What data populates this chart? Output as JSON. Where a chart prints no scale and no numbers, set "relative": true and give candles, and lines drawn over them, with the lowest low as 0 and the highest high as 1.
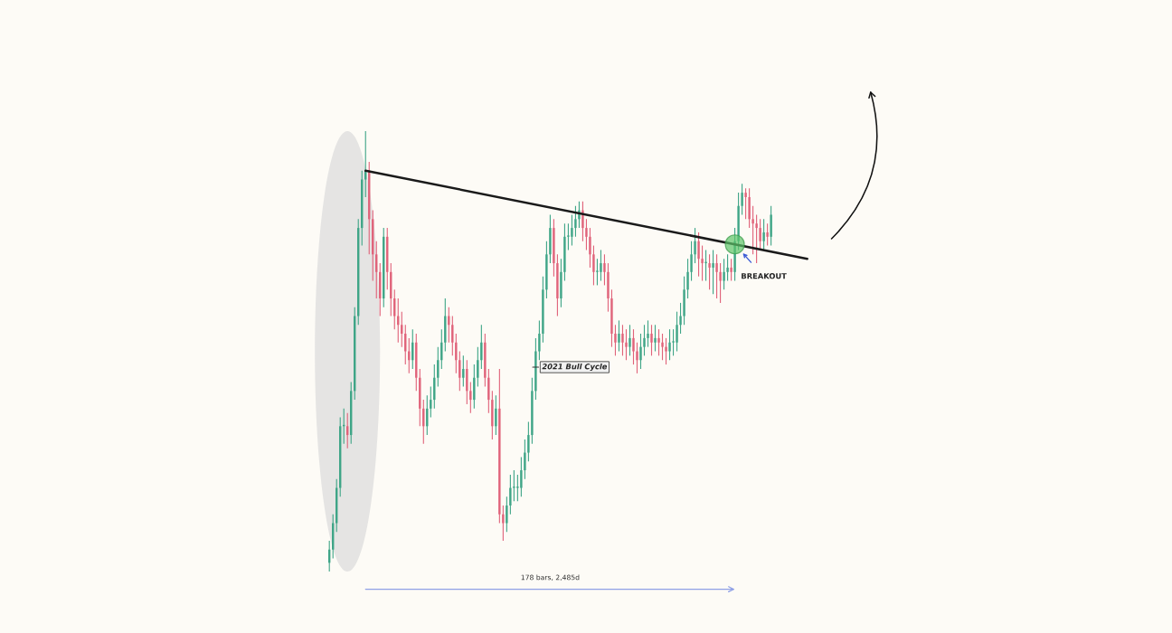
{
  "chart_data": {
    "type": "candlestick",
    "relative": true,
    "categories": [
      null,
      null,
      null,
      null,
      null,
      null,
      null,
      null,
      null,
      null,
      null,
      null,
      null,
      null,
      null,
      null,
      null,
      null,
      null,
      null,
      null,
      null,
      null,
      null,
      null,
      null,
      null,
      null,
      null,
      null,
      null,
      null,
      null,
      null,
      null,
      null,
      null,
      null,
      null,
      null,
      null,
      null,
      null,
      null,
      null,
      null,
      null,
      null,
      null,
      null,
      null,
      null,
      null,
      null,
      null,
      null,
      null,
      null,
      null,
      null,
      null,
      null,
      null,
      null,
      null,
      null,
      null,
      null,
      null,
      null,
      null,
      null,
      null,
      null,
      null,
      null,
      null,
      null,
      null,
      null,
      null,
      null,
      null,
      null,
      null,
      null,
      null,
      null,
      null,
      null,
      null,
      null,
      null,
      null,
      null,
      null,
      null,
      null,
      null,
      null,
      null,
      null,
      null,
      null,
      null,
      null,
      null,
      null,
      null,
      null,
      null,
      null,
      null,
      null,
      null,
      null,
      null,
      null,
      null,
      null,
      null,
      null,
      null,
      null,
      null,
      null,
      null,
      null,
      null,
      null,
      null,
      null,
      null
    ],
    "ohlc": [
      [
        0.02,
        0.07,
        0,
        0.05
      ],
      [
        0.05,
        0.13,
        0.03,
        0.11
      ],
      [
        0.11,
        0.21,
        0.09,
        0.19
      ],
      [
        0.19,
        0.35,
        0.17,
        0.33
      ],
      [
        0.33,
        0.37,
        0.29,
        0.33
      ],
      [
        0.33,
        0.36,
        0.28,
        0.31
      ],
      [
        0.31,
        0.43,
        0.29,
        0.41
      ],
      [
        0.41,
        0.6,
        0.39,
        0.58
      ],
      [
        0.58,
        0.8,
        0.56,
        0.78
      ],
      [
        0.78,
        0.91,
        0.74,
        0.89
      ],
      [
        0.89,
        1,
        0.85,
        0.91
      ],
      [
        0.91,
        0.93,
        0.72,
        0.8
      ],
      [
        0.8,
        0.82,
        0.66,
        0.72
      ],
      [
        0.72,
        0.75,
        0.62,
        0.68
      ],
      [
        0.68,
        0.7,
        0.58,
        0.62
      ],
      [
        0.62,
        0.78,
        0.6,
        0.76
      ],
      [
        0.76,
        0.78,
        0.64,
        0.68
      ],
      [
        0.68,
        0.7,
        0.58,
        0.62
      ],
      [
        0.62,
        0.64,
        0.55,
        0.58
      ],
      [
        0.58,
        0.62,
        0.52,
        0.56
      ],
      [
        0.56,
        0.59,
        0.51,
        0.54
      ],
      [
        0.54,
        0.56,
        0.47,
        0.5
      ],
      [
        0.5,
        0.53,
        0.45,
        0.48
      ],
      [
        0.48,
        0.55,
        0.46,
        0.52
      ],
      [
        0.52,
        0.54,
        0.41,
        0.44
      ],
      [
        0.44,
        0.46,
        0.33,
        0.37
      ],
      [
        0.37,
        0.39,
        0.29,
        0.33
      ],
      [
        0.33,
        0.4,
        0.31,
        0.37
      ],
      [
        0.37,
        0.42,
        0.35,
        0.39
      ],
      [
        0.39,
        0.47,
        0.37,
        0.44
      ],
      [
        0.44,
        0.51,
        0.42,
        0.48
      ],
      [
        0.48,
        0.55,
        0.46,
        0.52
      ],
      [
        0.52,
        0.62,
        0.5,
        0.58
      ],
      [
        0.58,
        0.6,
        0.52,
        0.56
      ],
      [
        0.56,
        0.58,
        0.49,
        0.52
      ],
      [
        0.52,
        0.54,
        0.45,
        0.48
      ],
      [
        0.48,
        0.5,
        0.41,
        0.44
      ],
      [
        0.44,
        0.49,
        0.42,
        0.46
      ],
      [
        0.46,
        0.48,
        0.38,
        0.41
      ],
      [
        0.41,
        0.43,
        0.36,
        0.39
      ],
      [
        0.39,
        0.47,
        0.37,
        0.44
      ],
      [
        0.44,
        0.51,
        0.42,
        0.48
      ],
      [
        0.48,
        0.56,
        0.46,
        0.52
      ],
      [
        0.52,
        0.54,
        0.42,
        0.44
      ],
      [
        0.44,
        0.46,
        0.36,
        0.39
      ],
      [
        0.39,
        0.41,
        0.3,
        0.33
      ],
      [
        0.33,
        0.4,
        0.31,
        0.37
      ],
      [
        0.37,
        0.46,
        0.11,
        0.13
      ],
      [
        0.13,
        0.15,
        0.07,
        0.11
      ],
      [
        0.11,
        0.17,
        0.09,
        0.15
      ],
      [
        0.15,
        0.22,
        0.13,
        0.19
      ],
      [
        0.19,
        0.23,
        0.16,
        0.19
      ],
      [
        0.19,
        0.22,
        0.16,
        0.19
      ],
      [
        0.19,
        0.26,
        0.17,
        0.23
      ],
      [
        0.23,
        0.3,
        0.21,
        0.27
      ],
      [
        0.27,
        0.34,
        0.25,
        0.31
      ],
      [
        0.31,
        0.44,
        0.29,
        0.41
      ],
      [
        0.41,
        0.53,
        0.39,
        0.5
      ],
      [
        0.5,
        0.57,
        0.48,
        0.54
      ],
      [
        0.54,
        0.67,
        0.52,
        0.64
      ],
      [
        0.64,
        0.75,
        0.62,
        0.72
      ],
      [
        0.72,
        0.81,
        0.7,
        0.78
      ],
      [
        0.78,
        0.8,
        0.67,
        0.7
      ],
      [
        0.7,
        0.72,
        0.58,
        0.62
      ],
      [
        0.62,
        0.71,
        0.6,
        0.68
      ],
      [
        0.68,
        0.79,
        0.66,
        0.76
      ],
      [
        0.76,
        0.79,
        0.73,
        0.76
      ],
      [
        0.76,
        0.81,
        0.74,
        0.78
      ],
      [
        0.78,
        0.83,
        0.76,
        0.8
      ],
      [
        0.8,
        0.84,
        0.78,
        0.82
      ],
      [
        0.82,
        0.84,
        0.75,
        0.78
      ],
      [
        0.78,
        0.8,
        0.73,
        0.76
      ],
      [
        0.76,
        0.78,
        0.69,
        0.72
      ],
      [
        0.72,
        0.74,
        0.65,
        0.68
      ],
      [
        0.68,
        0.71,
        0.65,
        0.68
      ],
      [
        0.68,
        0.73,
        0.66,
        0.7
      ],
      [
        0.7,
        0.72,
        0.65,
        0.68
      ],
      [
        0.68,
        0.7,
        0.59,
        0.62
      ],
      [
        0.62,
        0.64,
        0.51,
        0.54
      ],
      [
        0.54,
        0.56,
        0.49,
        0.52
      ],
      [
        0.52,
        0.57,
        0.5,
        0.54
      ],
      [
        0.54,
        0.56,
        0.49,
        0.52
      ],
      [
        0.52,
        0.55,
        0.48,
        0.51
      ],
      [
        0.51,
        0.56,
        0.49,
        0.53
      ],
      [
        0.53,
        0.55,
        0.47,
        0.5
      ],
      [
        0.5,
        0.52,
        0.45,
        0.48
      ],
      [
        0.48,
        0.54,
        0.46,
        0.51
      ],
      [
        0.51,
        0.56,
        0.49,
        0.53
      ],
      [
        0.53,
        0.57,
        0.51,
        0.54
      ],
      [
        0.54,
        0.56,
        0.49,
        0.52
      ],
      [
        0.52,
        0.56,
        0.5,
        0.53
      ],
      [
        0.53,
        0.55,
        0.49,
        0.52
      ],
      [
        0.52,
        0.54,
        0.48,
        0.51
      ],
      [
        0.51,
        0.53,
        0.47,
        0.5
      ],
      [
        0.5,
        0.55,
        0.48,
        0.52
      ],
      [
        0.52,
        0.55,
        0.49,
        0.52
      ],
      [
        0.52,
        0.59,
        0.5,
        0.56
      ],
      [
        0.56,
        0.61,
        0.54,
        0.58
      ],
      [
        0.58,
        0.67,
        0.56,
        0.64
      ],
      [
        0.64,
        0.71,
        0.62,
        0.68
      ],
      [
        0.68,
        0.75,
        0.66,
        0.72
      ],
      [
        0.72,
        0.78,
        0.7,
        0.75
      ],
      [
        0.75,
        0.77,
        0.67,
        0.71
      ],
      [
        0.71,
        0.74,
        0.66,
        0.7
      ],
      [
        0.7,
        0.73,
        0.66,
        0.7
      ],
      [
        0.7,
        0.72,
        0.64,
        0.69
      ],
      [
        0.69,
        0.73,
        0.63,
        0.7
      ],
      [
        0.7,
        0.72,
        0.62,
        0.68
      ],
      [
        0.68,
        0.7,
        0.61,
        0.66
      ],
      [
        0.66,
        0.71,
        0.64,
        0.68
      ],
      [
        0.68,
        0.72,
        0.66,
        0.69
      ],
      [
        0.69,
        0.71,
        0.66,
        0.68
      ],
      [
        0.68,
        0.78,
        0.66,
        0.75
      ],
      [
        0.75,
        0.86,
        0.73,
        0.83
      ],
      [
        0.83,
        0.88,
        0.81,
        0.86
      ],
      [
        0.86,
        0.87,
        0.8,
        0.85
      ],
      [
        0.85,
        0.87,
        0.78,
        0.8
      ],
      [
        0.8,
        0.83,
        0.72,
        0.79
      ],
      [
        0.79,
        0.81,
        0.7,
        0.78
      ],
      [
        0.78,
        0.8,
        0.73,
        0.75
      ],
      [
        0.75,
        0.8,
        0.73,
        0.77
      ],
      [
        0.77,
        0.79,
        0.74,
        0.76
      ],
      [
        0.76,
        0.83,
        0.74,
        0.81
      ],
      null,
      null,
      null,
      null,
      null,
      null,
      null,
      null,
      null,
      null
    ],
    "series": [
      {
        "type": "line",
        "color": "#1a1a1a",
        "values": [
          null,
          null,
          null,
          null,
          null,
          null,
          null,
          null,
          null,
          null,
          0.91,
          null,
          null,
          null,
          null,
          null,
          null,
          null,
          null,
          null,
          null,
          null,
          null,
          null,
          null,
          null,
          null,
          null,
          null,
          null,
          null,
          null,
          null,
          null,
          null,
          null,
          null,
          null,
          null,
          null,
          null,
          null,
          null,
          null,
          null,
          null,
          null,
          null,
          null,
          null,
          null,
          null,
          null,
          null,
          null,
          null,
          null,
          null,
          null,
          null,
          null,
          null,
          null,
          null,
          null,
          null,
          null,
          null,
          null,
          null,
          null,
          null,
          null,
          null,
          null,
          null,
          null,
          null,
          null,
          null,
          null,
          null,
          null,
          null,
          null,
          null,
          null,
          null,
          null,
          null,
          null,
          null,
          null,
          null,
          null,
          null,
          null,
          null,
          null,
          null,
          null,
          null,
          null,
          null,
          null,
          null,
          null,
          null,
          null,
          null,
          null,
          null,
          null,
          null,
          null,
          null,
          null,
          null,
          null,
          null,
          null,
          null,
          null,
          null,
          null,
          null,
          null,
          null,
          null,
          null,
          null,
          null,
          0.71
        ]
      }
    ],
    "annotations": [
      "2021 Bull Cycle",
      "BREAKOUT",
      "178 bars, 2,485d"
    ]
  }
}
